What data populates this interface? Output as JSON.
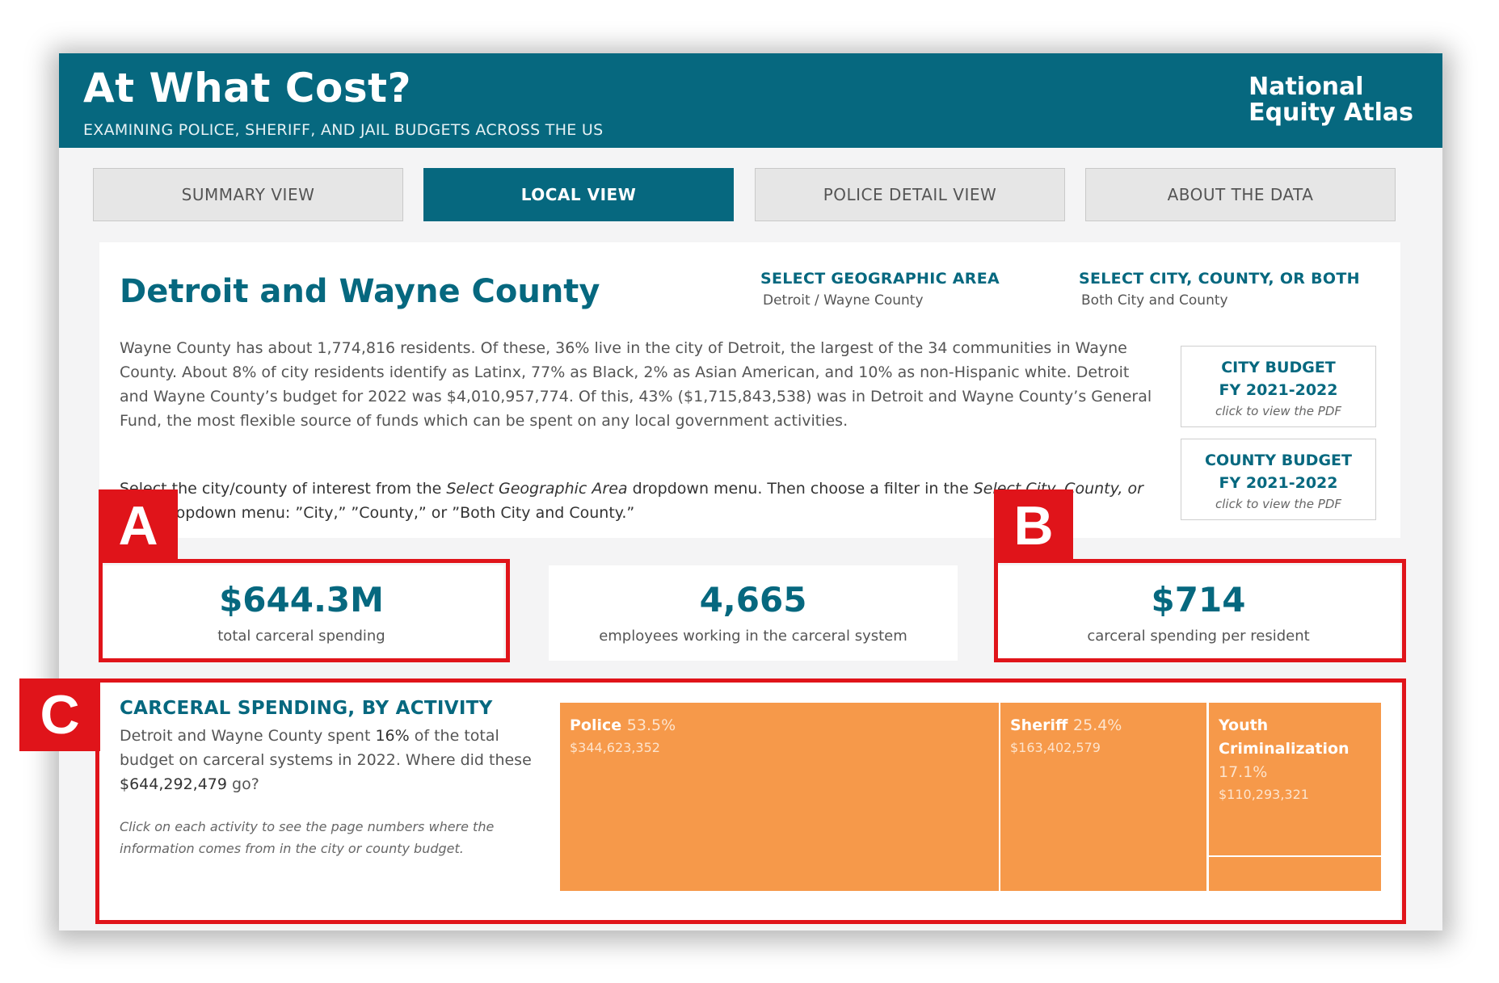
{
  "header": {
    "title": "At What Cost?",
    "subtitle": "EXAMINING POLICE, SHERIFF, AND JAIL BUDGETS ACROSS THE US",
    "brand_line1": "National",
    "brand_line2": "Equity Atlas"
  },
  "tabs": [
    {
      "label": "SUMMARY VIEW",
      "active": false
    },
    {
      "label": "LOCAL VIEW",
      "active": true
    },
    {
      "label": "POLICE DETAIL VIEW",
      "active": false
    },
    {
      "label": "ABOUT THE DATA",
      "active": false
    }
  ],
  "place": {
    "title": "Detroit and Wayne County",
    "geo_label": "SELECT GEOGRAPHIC AREA",
    "geo_value": "Detroit / Wayne County",
    "filter_label": "SELECT CITY, COUNTY, OR BOTH",
    "filter_value": "Both City and County",
    "intro": "Wayne County has about 1,774,816 residents. Of these, 36% live in the city of Detroit, the largest of the 34 communities in Wayne County. About 8% of city residents identify as Latinx, 77% as Black, 2% as Asian American, and 10% as non-Hispanic white. Detroit and Wayne County’s budget for 2022 was $4,010,957,774. Of this, 43% ($1,715,843,538) was in Detroit and Wayne County’s General Fund, the most flexible source of funds which can be spent on any local government activities.",
    "instructions_1": "Select the city/county of interest from the ",
    "instructions_geo": "Select Geographic Area",
    "instructions_2": " dropdown menu. Then choose a filter in the ",
    "instructions_filter": "Select City, County, or Both",
    "instructions_3": " dropdown menu: ”City,” ”County,” or ”Both City and County.”"
  },
  "budget_buttons": [
    {
      "line1": "CITY BUDGET",
      "line2": "FY 2021-2022",
      "hint": "click to view the PDF"
    },
    {
      "line1": "COUNTY BUDGET",
      "line2": "FY 2021-2022",
      "hint": "click to view the PDF"
    }
  ],
  "kpis": [
    {
      "value": "$644.3M",
      "label": "total carceral spending"
    },
    {
      "value": "4,665",
      "label": "employees working in the carceral system"
    },
    {
      "value": "$714",
      "label": "carceral spending per resident"
    }
  ],
  "activity": {
    "title": "CARCERAL SPENDING, BY ACTIVITY",
    "desc_1": "Detroit and Wayne County spent ",
    "desc_pct": "16%",
    "desc_2": " of the total budget on carceral systems in 2022. Where did these ",
    "desc_total": "$644,292,479",
    "desc_3": " go?",
    "note": "Click on each activity to see the page numbers where the information comes from in the city or county budget.",
    "treemap": [
      {
        "name": "Police",
        "pct": "53.5%",
        "amount": "$344,623,352"
      },
      {
        "name": "Sheriff",
        "pct": "25.4%",
        "amount": "$163,402,579"
      },
      {
        "name_line1": "Youth",
        "name_line2": "Criminalization",
        "pct": "17.1%",
        "amount": "$110,293,321"
      }
    ]
  },
  "annotations": [
    "A",
    "B",
    "C"
  ],
  "colors": {
    "header_teal": "#06687f",
    "treemap_orange": "#f6994a",
    "annotation_red": "#e0141a"
  }
}
